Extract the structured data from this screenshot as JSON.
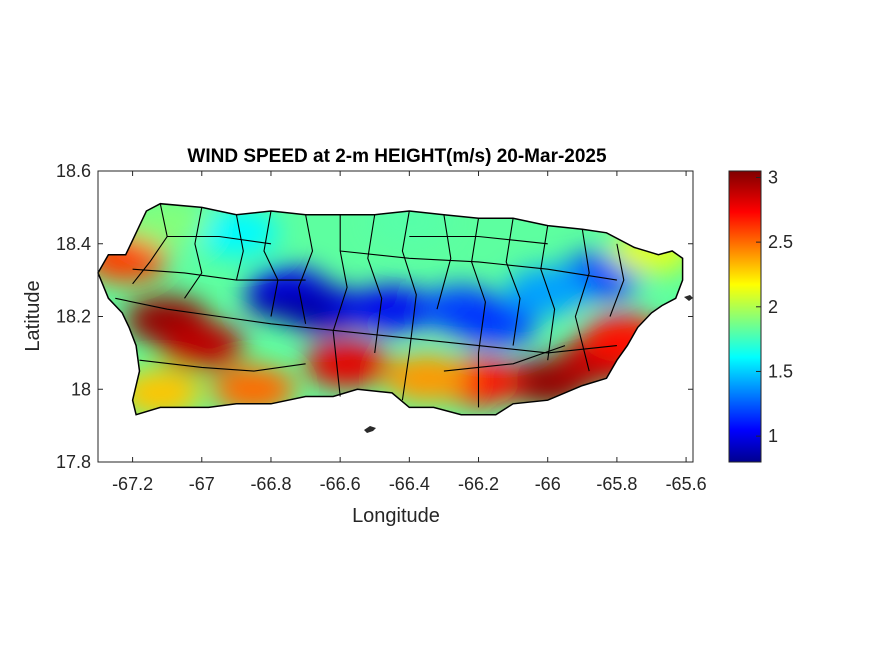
{
  "chart_data": {
    "type": "heatmap",
    "title": "WIND SPEED at 2-m HEIGHT(m/s) 20-Mar-2025",
    "xlabel": "Longitude",
    "ylabel": "Latitude",
    "xlim": [
      -67.3,
      -65.58
    ],
    "ylim": [
      17.8,
      18.6
    ],
    "x_ticks": [
      -67.2,
      -67,
      -66.8,
      -66.6,
      -66.4,
      -66.2,
      -66,
      -65.8,
      -65.6
    ],
    "x_tick_labels": [
      "-67.2",
      "-67",
      "-66.8",
      "-66.6",
      "-66.4",
      "-66.2",
      "-66",
      "-65.8",
      "-65.6"
    ],
    "y_ticks": [
      17.8,
      18,
      18.2,
      18.4,
      18.6
    ],
    "y_tick_labels": [
      "17.8",
      "18",
      "18.2",
      "18.4",
      "18.6"
    ],
    "colorbar": {
      "colormap": "jet",
      "limits": [
        0.8,
        3.05
      ],
      "ticks": [
        1,
        1.5,
        2,
        2.5,
        3
      ],
      "tick_labels": [
        "1",
        "1.5",
        "2",
        "2.5",
        "3"
      ]
    },
    "field_features": [
      {
        "lon": -66.65,
        "lat": 18.22,
        "value": 0.9
      },
      {
        "lon": -66.75,
        "lat": 18.27,
        "value": 1.0
      },
      {
        "lon": -66.45,
        "lat": 18.22,
        "value": 1.1
      },
      {
        "lon": -66.25,
        "lat": 18.22,
        "value": 1.2
      },
      {
        "lon": -66.15,
        "lat": 18.18,
        "value": 1.2
      },
      {
        "lon": -65.85,
        "lat": 18.31,
        "value": 1.2
      },
      {
        "lon": -66.0,
        "lat": 18.27,
        "value": 1.4
      },
      {
        "lon": -67.1,
        "lat": 18.19,
        "value": 3.0
      },
      {
        "lon": -67.0,
        "lat": 18.12,
        "value": 2.9
      },
      {
        "lon": -67.22,
        "lat": 18.36,
        "value": 2.6
      },
      {
        "lon": -66.0,
        "lat": 18.02,
        "value": 3.0
      },
      {
        "lon": -65.85,
        "lat": 18.08,
        "value": 2.9
      },
      {
        "lon": -65.78,
        "lat": 18.14,
        "value": 2.7
      },
      {
        "lon": -66.58,
        "lat": 18.07,
        "value": 2.8
      },
      {
        "lon": -66.2,
        "lat": 18.02,
        "value": 2.7
      },
      {
        "lon": -66.35,
        "lat": 18.03,
        "value": 2.4
      },
      {
        "lon": -66.85,
        "lat": 18.0,
        "value": 2.5
      },
      {
        "lon": -67.12,
        "lat": 17.99,
        "value": 2.3
      },
      {
        "lon": -66.9,
        "lat": 18.43,
        "value": 1.6
      },
      {
        "lon": -66.4,
        "lat": 18.46,
        "value": 1.8
      },
      {
        "lon": -65.7,
        "lat": 18.38,
        "value": 2.1
      },
      {
        "lon": -67.1,
        "lat": 18.46,
        "value": 1.9
      }
    ]
  }
}
